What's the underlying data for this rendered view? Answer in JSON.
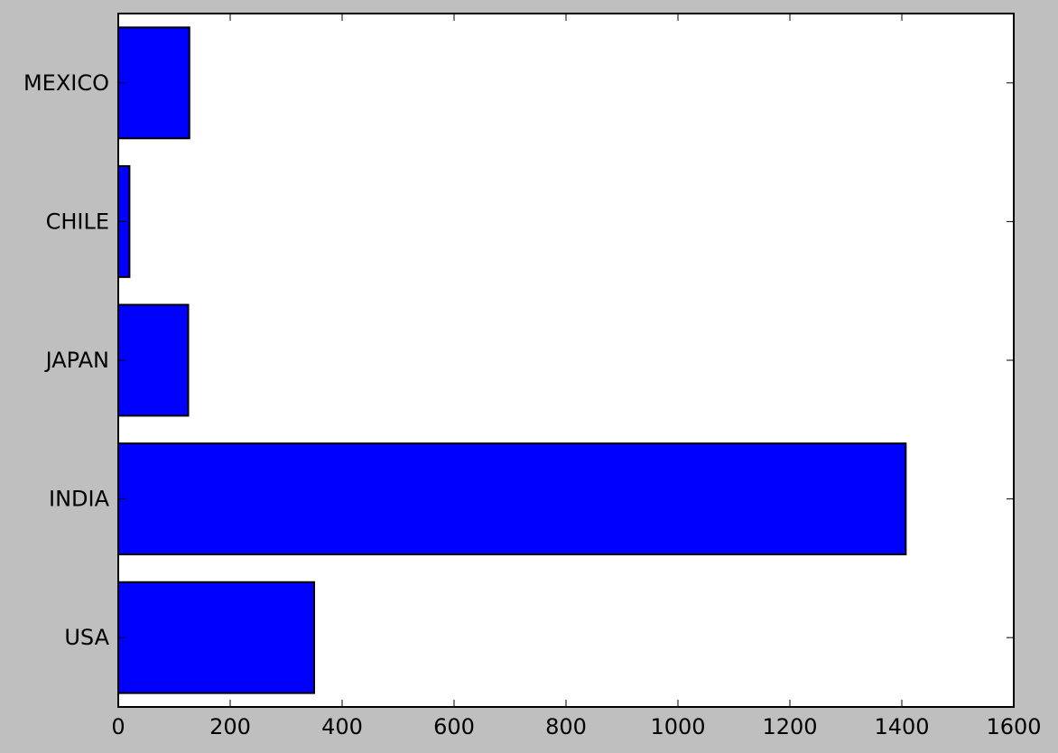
{
  "chart_data": {
    "type": "bar",
    "orientation": "horizontal",
    "title": "",
    "xlabel": "",
    "ylabel": "",
    "categories": [
      "USA",
      "INDIA",
      "JAPAN",
      "CHILE",
      "MEXICO"
    ],
    "values": [
      350,
      1407,
      125,
      20,
      127
    ],
    "xlim": [
      0,
      1600
    ],
    "xticks": [
      0,
      200,
      400,
      600,
      800,
      1000,
      1200,
      1400,
      1600
    ],
    "grid": false,
    "bar_color": "#0000ff",
    "edge_color": "#000000",
    "background_color": "#bfbfbf",
    "plot_background_color": "#ffffff"
  }
}
